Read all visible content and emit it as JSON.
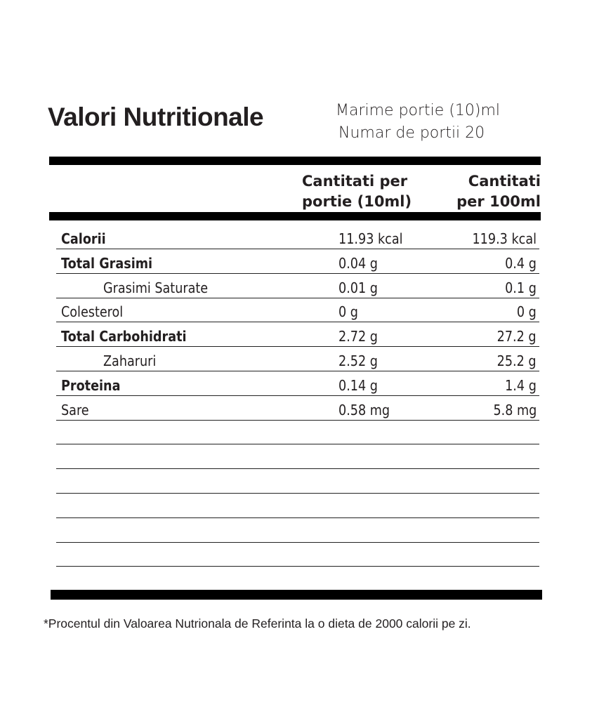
{
  "title": "Valori Nutritionale",
  "serving_size": "Marime portie (10)ml",
  "servings": "Numar de portii 20",
  "columns": [
    "Cantitati per portie (10ml)",
    "Cantitati per 100ml"
  ],
  "col1_lines": [
    "Cantitati per",
    "portie (10ml)"
  ],
  "col2_lines": [
    "Cantitati",
    "per 100ml"
  ],
  "rows": [
    {
      "label": "Calorii",
      "per_portion": "11.93 kcal",
      "per_100": "119.3 kcal",
      "style": "b"
    },
    {
      "label": "Total Grasimi",
      "per_portion": "0.04 g",
      "per_100": "0.4 g",
      "style": "b"
    },
    {
      "label": "Grasimi Saturate",
      "per_portion": "0.01 g",
      "per_100": "0.1 g",
      "style": "i"
    },
    {
      "label": "Colesterol",
      "per_portion": "0 g",
      "per_100": "0 g",
      "style": ""
    },
    {
      "label": "Total Carbohidrati",
      "per_portion": "2.72 g",
      "per_100": "27.2 g",
      "style": "b"
    },
    {
      "label": "Zaharuri",
      "per_portion": "2.52 g",
      "per_100": "25.2 g",
      "style": "i"
    },
    {
      "label": "Proteina",
      "per_portion": "0.14 g",
      "per_100": "1.4 g",
      "style": "b"
    },
    {
      "label": "Sare",
      "per_portion": "0.58 mg",
      "per_100": "5.8 mg",
      "style": ""
    }
  ],
  "empty_rows": 6,
  "footnote": "*Procentul din Valoarea Nutrionala de Referinta la o dieta de 2000 calorii pe zi."
}
